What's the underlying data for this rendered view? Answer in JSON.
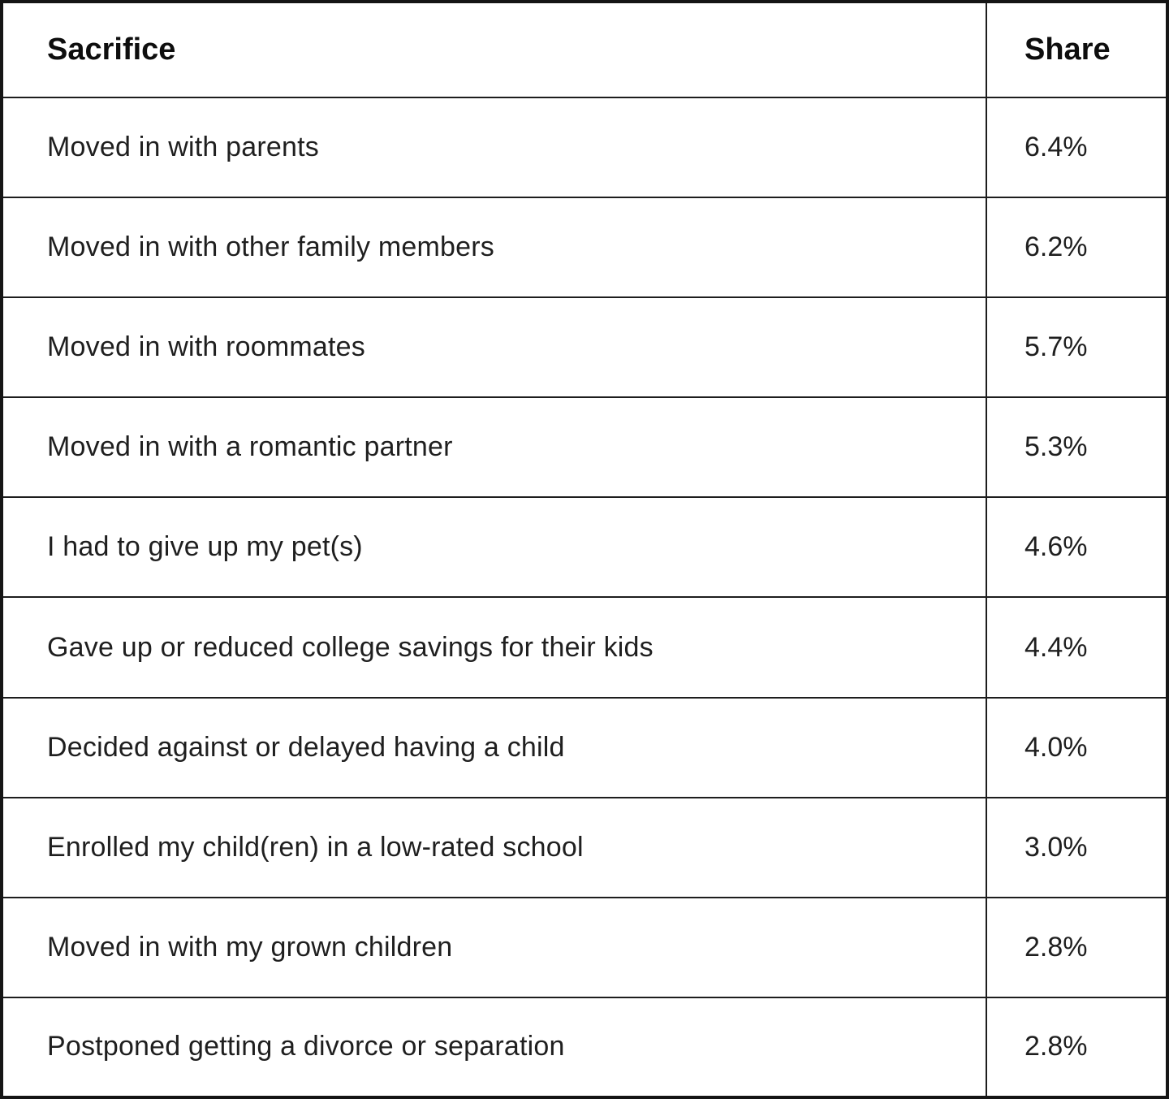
{
  "chart_data": {
    "type": "table",
    "columns": [
      "Sacrifice",
      "Share"
    ],
    "rows": [
      [
        "Moved in with parents",
        "6.4%"
      ],
      [
        "Moved in with other family members",
        "6.2%"
      ],
      [
        "Moved in with roommates",
        "5.7%"
      ],
      [
        "Moved in with a romantic partner",
        "5.3%"
      ],
      [
        "I had to give up my pet(s)",
        "4.6%"
      ],
      [
        "Gave up or reduced college savings for their kids",
        "4.4%"
      ],
      [
        "Decided against or delayed having a child",
        "4.0%"
      ],
      [
        "Enrolled my child(ren) in a low-rated school",
        "3.0%"
      ],
      [
        "Moved in with my grown children",
        "2.8%"
      ],
      [
        "Postponed getting a divorce or separation",
        "2.8%"
      ]
    ],
    "values_percent": [
      6.4,
      6.2,
      5.7,
      5.3,
      4.6,
      4.4,
      4.0,
      3.0,
      2.8,
      2.8
    ],
    "title": "",
    "legend": "none",
    "grid": "full-borders"
  },
  "table": {
    "header": {
      "sacrifice": "Sacrifice",
      "share": "Share"
    },
    "rows": [
      {
        "sacrifice": "Moved in with parents",
        "share": "6.4%"
      },
      {
        "sacrifice": "Moved in with other family members",
        "share": "6.2%"
      },
      {
        "sacrifice": "Moved in with roommates",
        "share": "5.7%"
      },
      {
        "sacrifice": "Moved in with a romantic partner",
        "share": "5.3%"
      },
      {
        "sacrifice": "I had to give up my pet(s)",
        "share": "4.6%"
      },
      {
        "sacrifice": "Gave up or reduced college savings for their kids",
        "share": "4.4%"
      },
      {
        "sacrifice": "Decided against or delayed having a child",
        "share": "4.0%"
      },
      {
        "sacrifice": "Enrolled my child(ren) in a low-rated school",
        "share": "3.0%"
      },
      {
        "sacrifice": "Moved in with my grown children",
        "share": "2.8%"
      },
      {
        "sacrifice": "Postponed getting a divorce or separation",
        "share": "2.8%"
      }
    ],
    "colors": {
      "border": "#1d1d1d",
      "text": "#1f1f1f",
      "background": "#ffffff"
    }
  }
}
